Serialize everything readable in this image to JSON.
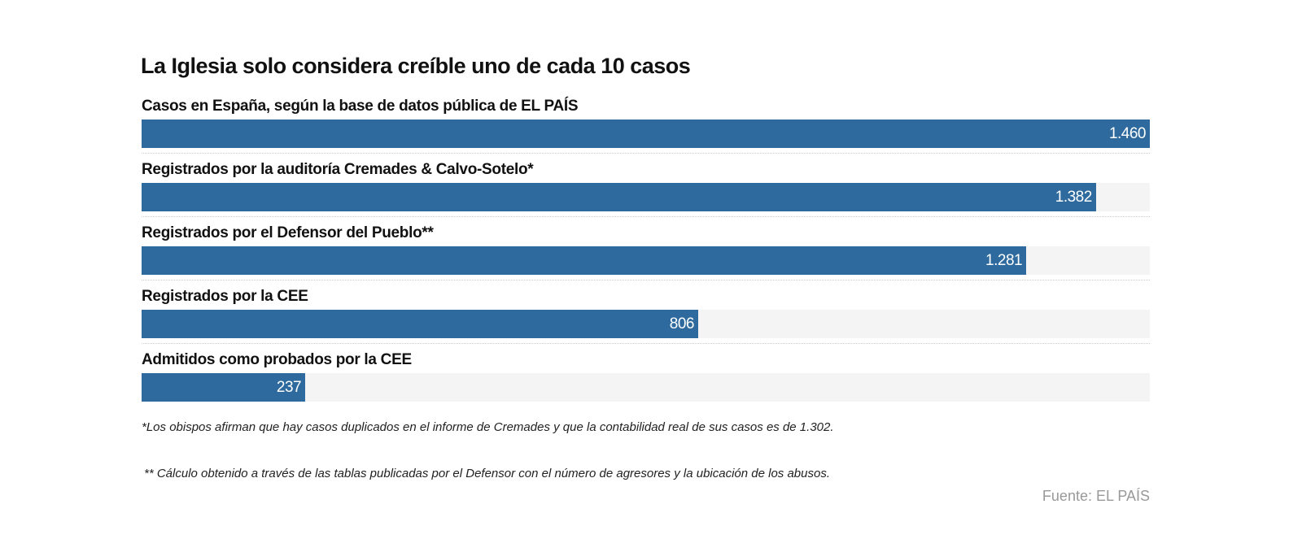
{
  "chart_data": {
    "type": "bar",
    "orientation": "horizontal",
    "title": "La Iglesia solo considera creíble uno de cada 10 casos",
    "categories": [
      "Casos en España, según la base de datos pública de EL PAÍS",
      "Registrados por la auditoría Cremades & Calvo-Sotelo*",
      "Registrados por el Defensor del Pueblo**",
      "Registrados por la CEE",
      "Admitidos como probados por la CEE"
    ],
    "values": [
      1460,
      1382,
      1281,
      806,
      237
    ],
    "value_labels": [
      "1.460",
      "1.382",
      "1.281",
      "806",
      "237"
    ],
    "xlim": [
      0,
      1460
    ],
    "grid": false,
    "colors": {
      "bar": "#2e6a9e",
      "track": "#f4f4f4"
    }
  },
  "notes": [
    "*Los obispos afirman que hay casos duplicados en el informe de Cremades y que la contabilidad real de sus casos es de 1.302.",
    "** Cálculo obtenido a través de las tablas publicadas por el Defensor con el número de agresores y la ubicación de los abusos."
  ],
  "source": "Fuente: EL PAÍS"
}
